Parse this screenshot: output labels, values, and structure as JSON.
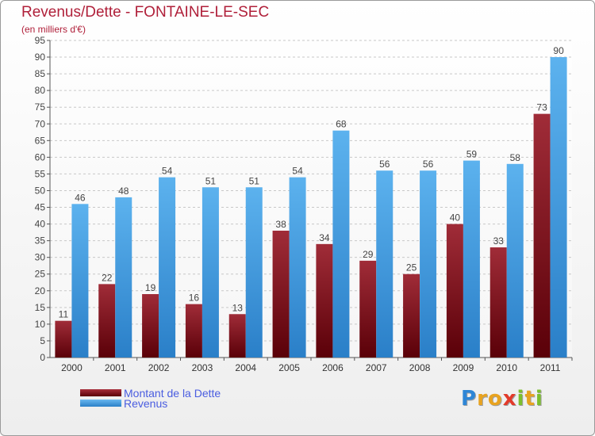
{
  "title": "Revenus/Dette - FONTAINE-LE-SEC",
  "subtitle": "(en milliers d'€)",
  "legend": [
    {
      "label": "Montant de la Dette",
      "color": "#7a0a18"
    },
    {
      "label": "Revenus",
      "color": "#3a9be2"
    }
  ],
  "brand": {
    "text": "Proxiti",
    "letters": [
      {
        "ch": "P",
        "color": "#2e86d6"
      },
      {
        "ch": "r",
        "color": "#e8a320"
      },
      {
        "ch": "o",
        "color": "#e8a320"
      },
      {
        "ch": "x",
        "color": "#e23a2a"
      },
      {
        "ch": "i",
        "color": "#7cbf2e"
      },
      {
        "ch": "t",
        "color": "#e8a320"
      },
      {
        "ch": "i",
        "color": "#7cbf2e"
      }
    ]
  },
  "chart_data": {
    "type": "bar",
    "title": "Revenus/Dette - FONTAINE-LE-SEC",
    "subtitle": "(en milliers d'€)",
    "categories": [
      "2000",
      "2001",
      "2002",
      "2003",
      "2004",
      "2005",
      "2006",
      "2007",
      "2008",
      "2009",
      "2010",
      "2011"
    ],
    "series": [
      {
        "name": "Montant de la Dette",
        "color": "#7a0a18",
        "values": [
          11,
          22,
          19,
          16,
          13,
          38,
          34,
          29,
          25,
          40,
          33,
          73
        ]
      },
      {
        "name": "Revenus",
        "color": "#3a9be2",
        "values": [
          46,
          48,
          54,
          51,
          51,
          54,
          68,
          56,
          56,
          59,
          58,
          90
        ]
      }
    ],
    "ylim": [
      0,
      95
    ],
    "yticks": [
      0,
      5,
      10,
      15,
      20,
      25,
      30,
      35,
      40,
      45,
      50,
      55,
      60,
      65,
      70,
      75,
      80,
      85,
      90,
      95
    ],
    "grid": true,
    "legend_position": "bottom-left"
  }
}
